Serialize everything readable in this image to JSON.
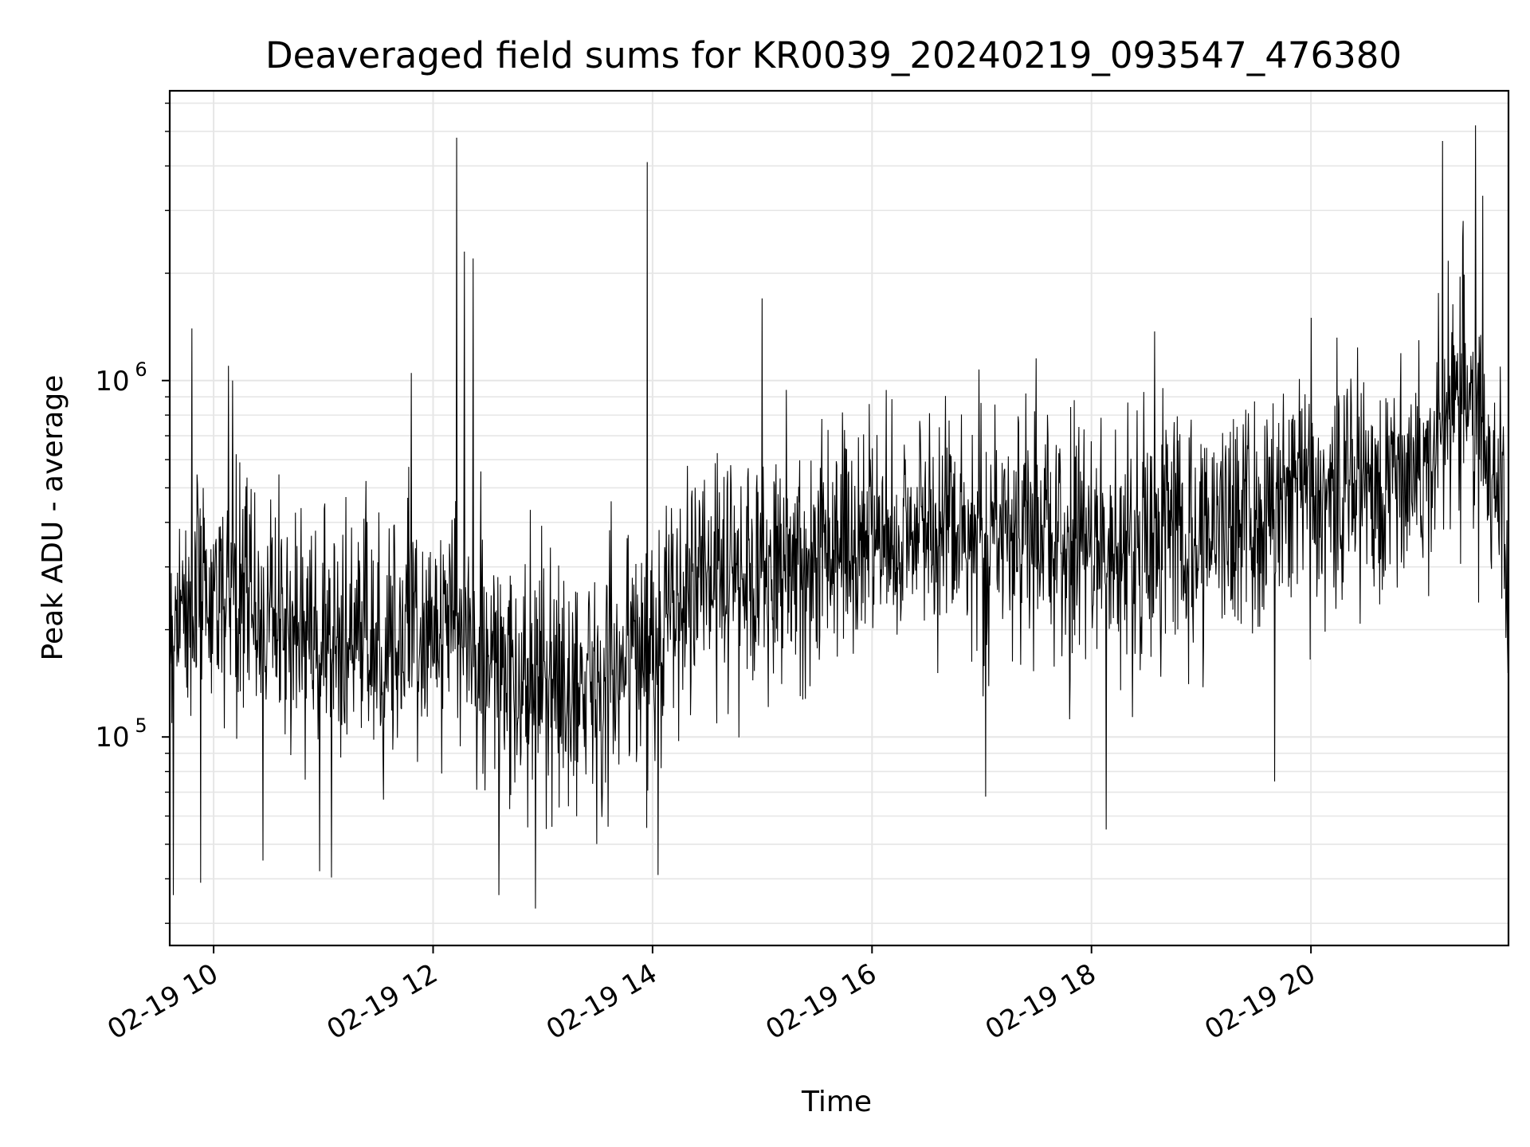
{
  "chart_data": {
    "type": "line",
    "title": "Deaveraged field sums for KR0039_20240219_093547_476380",
    "xlabel": "Time",
    "ylabel": "Peak ADU - average",
    "x_scale": "time",
    "y_scale": "log",
    "xlim": [
      "2024-02-19 09:36",
      "2024-02-19 21:48"
    ],
    "ylim": [
      26000,
      6500000
    ],
    "grid": true,
    "legend": "none",
    "line_color": "#000000",
    "grid_color": "#e6e6e6",
    "x_ticks": [
      {
        "value": "2024-02-19 10:00",
        "label": "02-19 10"
      },
      {
        "value": "2024-02-19 12:00",
        "label": "02-19 12"
      },
      {
        "value": "2024-02-19 14:00",
        "label": "02-19 14"
      },
      {
        "value": "2024-02-19 16:00",
        "label": "02-19 16"
      },
      {
        "value": "2024-02-19 18:00",
        "label": "02-19 18"
      },
      {
        "value": "2024-02-19 20:00",
        "label": "02-19 20"
      }
    ],
    "y_major_ticks": [
      {
        "value": 100000,
        "base": "10",
        "exp": "5"
      },
      {
        "value": 1000000,
        "base": "10",
        "exp": "6"
      }
    ],
    "series": [
      {
        "times": [
          "09:36",
          "09:50",
          "10:00",
          "10:10",
          "10:20",
          "10:30",
          "10:45",
          "11:00",
          "11:15",
          "11:30",
          "11:45",
          "12:00",
          "12:15",
          "12:30",
          "12:45",
          "13:00",
          "13:15",
          "13:30",
          "13:45",
          "14:00",
          "14:15",
          "14:30",
          "14:45",
          "15:00",
          "15:20",
          "15:40",
          "16:00",
          "16:20",
          "16:40",
          "17:00",
          "17:20",
          "17:40",
          "18:00",
          "18:20",
          "18:40",
          "19:00",
          "19:20",
          "19:40",
          "20:00",
          "20:20",
          "20:40",
          "21:00",
          "21:10",
          "21:20",
          "21:30",
          "21:40",
          "21:48"
        ],
        "typical": [
          220000,
          250000,
          260000,
          250000,
          240000,
          220000,
          210000,
          190000,
          180000,
          190000,
          200000,
          210000,
          200000,
          160000,
          140000,
          130000,
          140000,
          150000,
          165000,
          180000,
          240000,
          280000,
          290000,
          300000,
          320000,
          340000,
          360000,
          380000,
          390000,
          400000,
          380000,
          360000,
          330000,
          340000,
          380000,
          390000,
          400000,
          450000,
          500000,
          520000,
          530000,
          560000,
          800000,
          900000,
          850000,
          500000,
          330000
        ],
        "spikes": [
          {
            "time": "09:38",
            "value": 36000
          },
          {
            "time": "09:48",
            "value": 1400000
          },
          {
            "time": "09:53",
            "value": 39000
          },
          {
            "time": "10:08",
            "value": 1100000
          },
          {
            "time": "10:27",
            "value": 45000
          },
          {
            "time": "10:58",
            "value": 42000
          },
          {
            "time": "11:48",
            "value": 1050000
          },
          {
            "time": "12:13",
            "value": 4800000
          },
          {
            "time": "12:17",
            "value": 2300000
          },
          {
            "time": "12:22",
            "value": 2200000
          },
          {
            "time": "12:36",
            "value": 36000
          },
          {
            "time": "12:56",
            "value": 33000
          },
          {
            "time": "13:57",
            "value": 4100000
          },
          {
            "time": "14:03",
            "value": 41000
          },
          {
            "time": "15:00",
            "value": 1700000
          },
          {
            "time": "17:02",
            "value": 68000
          },
          {
            "time": "18:08",
            "value": 55000
          },
          {
            "time": "19:40",
            "value": 75000
          },
          {
            "time": "20:00",
            "value": 1500000
          },
          {
            "time": "21:12",
            "value": 4700000
          },
          {
            "time": "21:23",
            "value": 2500000
          },
          {
            "time": "21:30",
            "value": 5200000
          },
          {
            "time": "21:34",
            "value": 3300000
          }
        ]
      }
    ]
  }
}
